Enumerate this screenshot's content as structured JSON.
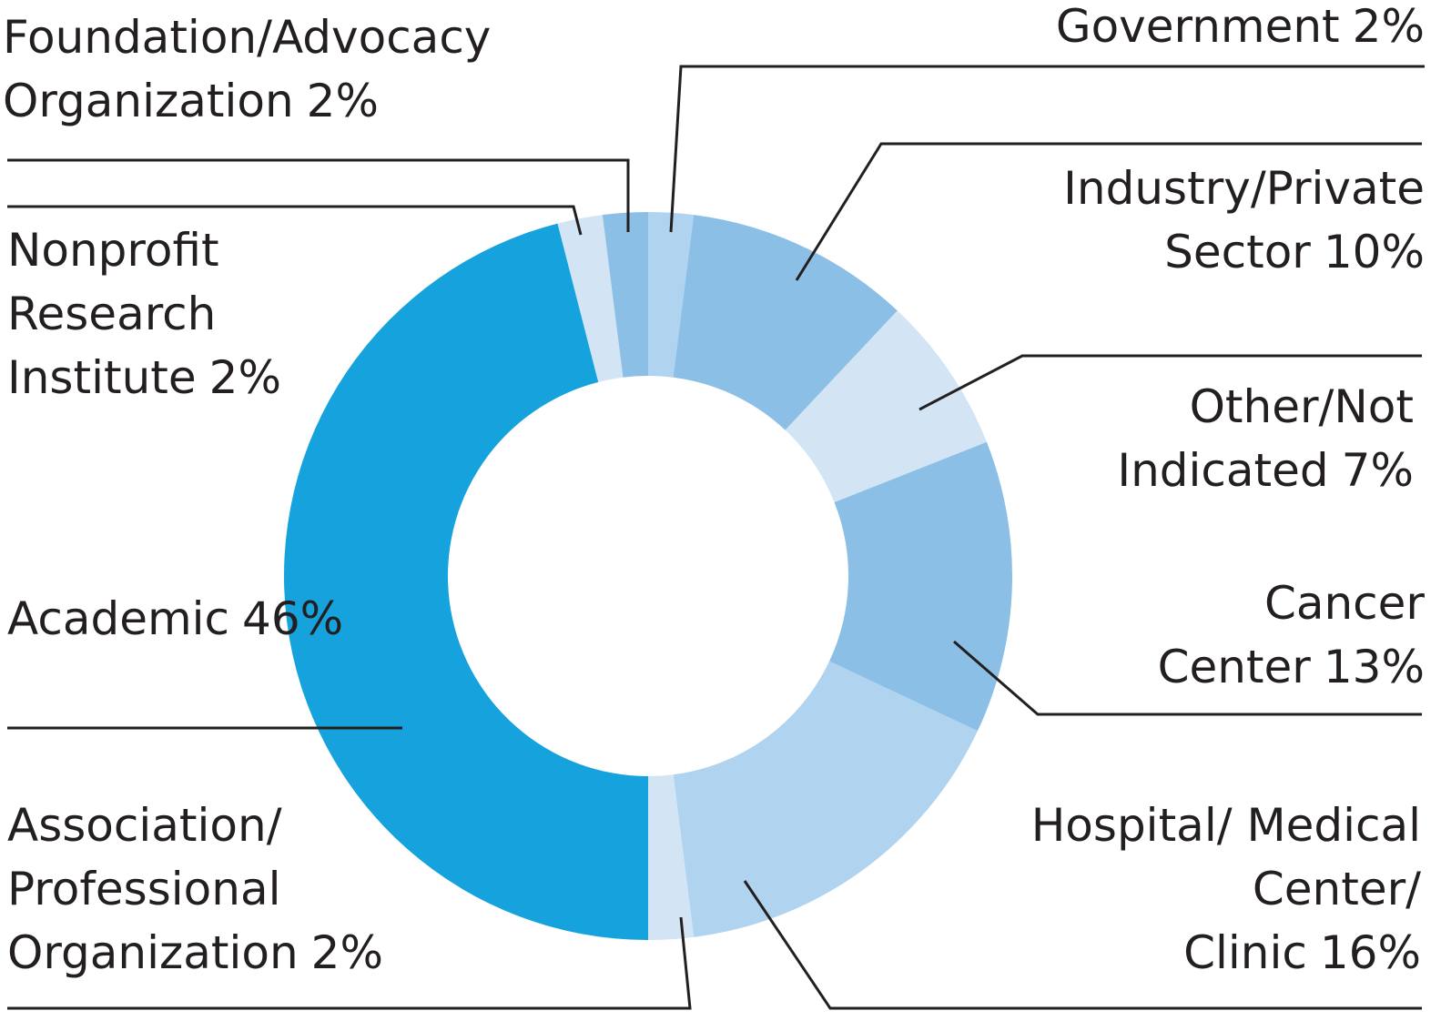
{
  "chart_data": {
    "type": "donut",
    "categories": [
      "Government",
      "Industry/Private Sector",
      "Other/Not Indicated",
      "Cancer Center",
      "Hospital/ Medical Center/ Clinic",
      "Association/ Professional Organization",
      "Academic",
      "Nonprofit Research Institute",
      "Foundation/Advocacy Organization"
    ],
    "values": [
      2,
      10,
      7,
      13,
      16,
      2,
      46,
      2,
      2
    ],
    "value_labels": [
      "2%",
      "10%",
      "7%",
      "13%",
      "16%",
      "2%",
      "46%",
      "2%",
      "2%"
    ],
    "colors": [
      "#b0d3ef",
      "#8bbfe6",
      "#d3e5f5",
      "#8bbfe6",
      "#b0d3ef",
      "#d3e5f5",
      "#16a2dc",
      "#d3e5f5",
      "#8bbfe6"
    ]
  }
}
